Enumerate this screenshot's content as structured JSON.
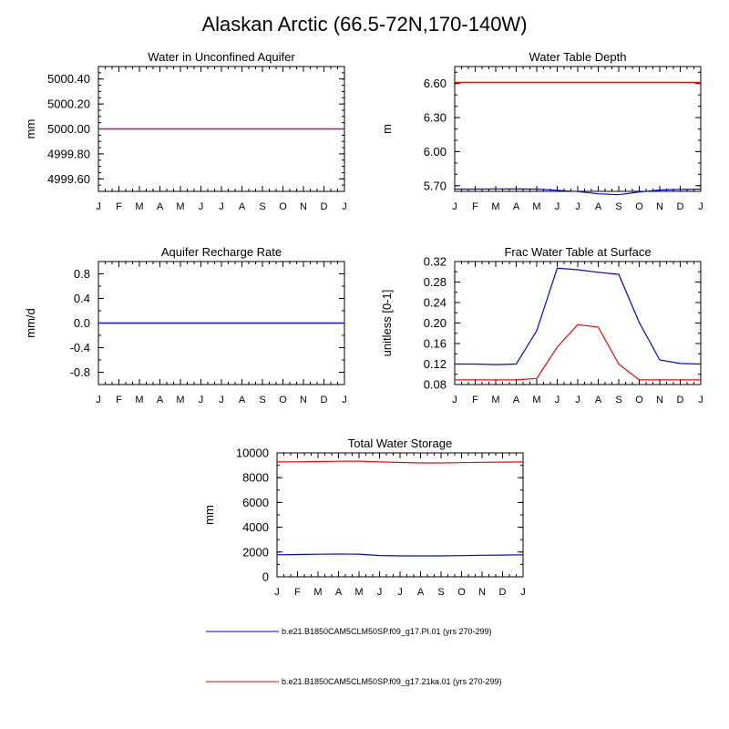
{
  "page_title": "Alaskan Arctic (66.5-72N,170-140W)",
  "colors": {
    "pi": "#0000ff",
    "ka": "#ff0000",
    "axis": "#000000"
  },
  "legend": [
    {
      "label": "b.e21.B1850CAM5CLM50SP.f09_g17.PI.01 (yrs 270-299)",
      "color": "#0000ff"
    },
    {
      "label": "b.e21.B1850CAM5CLM50SP.f09_g17.21ka.01 (yrs 270-299)",
      "color": "#ff0000"
    }
  ],
  "chart_data": [
    {
      "type": "line",
      "title": "Water in Unconfined Aquifer",
      "ylabel": "mm",
      "x": [
        "J",
        "F",
        "M",
        "A",
        "M",
        "J",
        "J",
        "A",
        "S",
        "O",
        "N",
        "D",
        "J"
      ],
      "ylim": [
        4999.5,
        5000.5
      ],
      "yticks": [
        4999.6,
        4999.8,
        5000.0,
        5000.2,
        5000.4
      ],
      "ytick_labels": [
        "4999.60",
        "4999.80",
        "5000.00",
        "5000.20",
        "5000.40"
      ],
      "series": [
        {
          "color": "#0000ff",
          "values": [
            5000,
            5000,
            5000,
            5000,
            5000,
            5000,
            5000,
            5000,
            5000,
            5000,
            5000,
            5000,
            5000
          ]
        },
        {
          "color": "#ff0000",
          "values": [
            5000,
            5000,
            5000,
            5000,
            5000,
            5000,
            5000,
            5000,
            5000,
            5000,
            5000,
            5000,
            5000
          ]
        }
      ]
    },
    {
      "type": "line",
      "title": "Water Table Depth",
      "ylabel": "m",
      "x": [
        "J",
        "F",
        "M",
        "A",
        "M",
        "J",
        "J",
        "A",
        "S",
        "O",
        "N",
        "D",
        "J"
      ],
      "ylim": [
        5.65,
        6.75
      ],
      "yticks": [
        5.7,
        6.0,
        6.3,
        6.6
      ],
      "ytick_labels": [
        "5.70",
        "6.00",
        "6.30",
        "6.60"
      ],
      "series": [
        {
          "color": "#0000ff",
          "values": [
            5.67,
            5.67,
            5.672,
            5.671,
            5.67,
            5.66,
            5.648,
            5.628,
            5.62,
            5.645,
            5.662,
            5.667,
            5.67
          ]
        },
        {
          "color": "#ff0000",
          "values": [
            6.61,
            6.61,
            6.61,
            6.61,
            6.61,
            6.61,
            6.61,
            6.61,
            6.61,
            6.61,
            6.61,
            6.61,
            6.61
          ]
        }
      ]
    },
    {
      "type": "line",
      "title": "Aquifer Recharge Rate",
      "ylabel": "mm/d",
      "x": [
        "J",
        "F",
        "M",
        "A",
        "M",
        "J",
        "J",
        "A",
        "S",
        "O",
        "N",
        "D",
        "J"
      ],
      "ylim": [
        -1.0,
        1.0
      ],
      "yticks": [
        -0.8,
        -0.4,
        0.0,
        0.4,
        0.8
      ],
      "ytick_labels": [
        "-0.8",
        "-0.4",
        "0.0",
        "0.4",
        "0.8"
      ],
      "series": [
        {
          "color": "#ff0000",
          "values": [
            0,
            0,
            0,
            0,
            0,
            0,
            0,
            0,
            0,
            0,
            0,
            0,
            0
          ]
        },
        {
          "color": "#0000ff",
          "values": [
            0,
            0,
            0,
            0,
            0,
            0,
            0,
            0,
            0,
            0,
            0,
            0,
            0
          ]
        }
      ]
    },
    {
      "type": "line",
      "title": "Frac Water Table at Surface",
      "ylabel": "unitless [0-1]",
      "x": [
        "J",
        "F",
        "M",
        "A",
        "M",
        "J",
        "J",
        "A",
        "S",
        "O",
        "N",
        "D",
        "J"
      ],
      "ylim": [
        0.08,
        0.32
      ],
      "yticks": [
        0.08,
        0.12,
        0.16,
        0.2,
        0.24,
        0.28,
        0.32
      ],
      "ytick_labels": [
        "0.08",
        "0.12",
        "0.16",
        "0.20",
        "0.24",
        "0.28",
        "0.32"
      ],
      "series": [
        {
          "color": "#0000ff",
          "values": [
            0.12,
            0.12,
            0.119,
            0.12,
            0.185,
            0.307,
            0.304,
            0.299,
            0.295,
            0.201,
            0.128,
            0.121,
            0.12
          ]
        },
        {
          "color": "#ff0000",
          "values": [
            0.089,
            0.089,
            0.089,
            0.089,
            0.092,
            0.153,
            0.197,
            0.192,
            0.12,
            0.089,
            0.089,
            0.089,
            0.089
          ]
        }
      ]
    },
    {
      "type": "line",
      "title": "Total Water Storage",
      "ylabel": "mm",
      "x": [
        "J",
        "F",
        "M",
        "A",
        "M",
        "J",
        "J",
        "A",
        "S",
        "O",
        "N",
        "D",
        "J"
      ],
      "ylim": [
        0,
        10000
      ],
      "yticks": [
        0,
        2000,
        4000,
        6000,
        8000,
        10000
      ],
      "ytick_labels": [
        "0",
        "2000",
        "4000",
        "6000",
        "8000",
        "10000"
      ],
      "series": [
        {
          "color": "#0000ff",
          "values": [
            1780,
            1800,
            1820,
            1840,
            1830,
            1720,
            1690,
            1690,
            1690,
            1710,
            1740,
            1760,
            1780
          ]
        },
        {
          "color": "#ff0000",
          "values": [
            9270,
            9280,
            9300,
            9320,
            9330,
            9280,
            9230,
            9190,
            9190,
            9210,
            9240,
            9260,
            9270
          ]
        }
      ]
    }
  ]
}
